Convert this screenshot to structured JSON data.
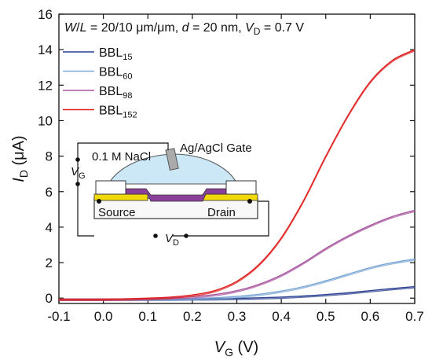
{
  "chart_data": {
    "type": "line",
    "title": "",
    "condition": {
      "w": "W",
      "l": "L",
      "wl_value": " = 20/10 μm/μm, ",
      "d": "d",
      "d_value": " = 20 nm, ",
      "v": "V",
      "v_sub": "D",
      "vd_value": " = 0.7 V"
    },
    "xlabel": {
      "main": "V",
      "sub": "G",
      "unit": " (V)"
    },
    "ylabel": {
      "main": "I",
      "sub": "D",
      "unit": " (μA)"
    },
    "xlim": [
      -0.1,
      0.7
    ],
    "ylim": [
      -0.3,
      16
    ],
    "xticks": [
      "-0.1",
      "0.0",
      "0.1",
      "0.2",
      "0.3",
      "0.4",
      "0.5",
      "0.6",
      "0.7"
    ],
    "yticks": [
      "0",
      "2",
      "4",
      "6",
      "8",
      "10",
      "12",
      "14",
      "16"
    ],
    "grid": false,
    "legend_position": "top-left",
    "x": [
      -0.1,
      -0.05,
      0.0,
      0.05,
      0.1,
      0.15,
      0.2,
      0.25,
      0.3,
      0.35,
      0.4,
      0.45,
      0.5,
      0.55,
      0.6,
      0.65,
      0.7
    ],
    "series": [
      {
        "name": "BBL",
        "sub": "15",
        "color": "#2a3f8f",
        "values": [
          -0.05,
          -0.05,
          -0.05,
          -0.05,
          -0.05,
          -0.05,
          -0.04,
          -0.03,
          -0.01,
          0.02,
          0.06,
          0.12,
          0.2,
          0.3,
          0.42,
          0.54,
          0.65
        ]
      },
      {
        "name": "BBL",
        "sub": "60",
        "color": "#7aa7d6",
        "values": [
          -0.05,
          -0.05,
          -0.05,
          -0.05,
          -0.05,
          -0.04,
          -0.02,
          0.02,
          0.1,
          0.22,
          0.4,
          0.65,
          0.98,
          1.35,
          1.72,
          2.0,
          2.2
        ]
      },
      {
        "name": "BBL",
        "sub": "98",
        "color": "#a8559f",
        "values": [
          -0.05,
          -0.05,
          -0.05,
          -0.04,
          -0.02,
          0.02,
          0.08,
          0.2,
          0.42,
          0.78,
          1.3,
          2.0,
          2.8,
          3.5,
          4.1,
          4.6,
          4.95
        ]
      },
      {
        "name": "BBL",
        "sub": "152",
        "color": "#e02020",
        "values": [
          -0.05,
          -0.05,
          -0.05,
          -0.04,
          0.0,
          0.06,
          0.18,
          0.42,
          0.95,
          1.9,
          3.4,
          5.5,
          8.0,
          10.3,
          12.2,
          13.4,
          14.0
        ]
      }
    ],
    "inset": {
      "electrolyte": "0.1 M NaCl",
      "gate": "Ag/AgCl Gate",
      "source": "Source",
      "drain": "Drain",
      "v": "V",
      "vg_sub": "G",
      "vd_sub": "D",
      "colors": {
        "electrolyte": "#cce8f7",
        "channel": "#8a3f9a",
        "gold": "#f2d90a",
        "substrate": "#f8f8f8",
        "encapsulation": "#ffffff",
        "electrode": "#aaaaaa"
      }
    }
  }
}
